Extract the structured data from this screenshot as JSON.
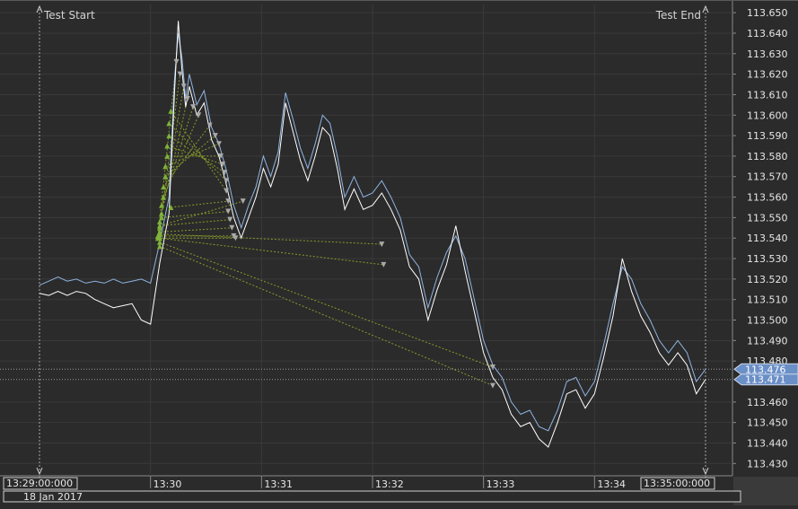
{
  "chart_data": {
    "type": "line",
    "title": "",
    "xlabel": "",
    "ylabel": "",
    "ylim": [
      113.424,
      113.654
    ],
    "x_range": [
      "13:29:00",
      "13:35:00"
    ],
    "y_ticks": [
      "113.650",
      "113.640",
      "113.630",
      "113.620",
      "113.610",
      "113.600",
      "113.590",
      "113.580",
      "113.570",
      "113.560",
      "113.550",
      "113.540",
      "113.530",
      "113.520",
      "113.510",
      "113.500",
      "113.490",
      "113.480",
      "113.460",
      "113.450",
      "113.440",
      "113.430"
    ],
    "y_tick_values": [
      113.65,
      113.64,
      113.63,
      113.62,
      113.61,
      113.6,
      113.59,
      113.58,
      113.57,
      113.56,
      113.55,
      113.54,
      113.53,
      113.52,
      113.51,
      113.5,
      113.49,
      113.48,
      113.46,
      113.45,
      113.44,
      113.43
    ],
    "x_ticks": [
      {
        "label": "13:29:00:000",
        "t": "13:29:00",
        "boxed": true
      },
      {
        "label": "13:30",
        "t": "13:30:00",
        "boxed": false
      },
      {
        "label": "13:31",
        "t": "13:31:00",
        "boxed": false
      },
      {
        "label": "13:32",
        "t": "13:32:00",
        "boxed": false
      },
      {
        "label": "13:33",
        "t": "13:33:00",
        "boxed": false
      },
      {
        "label": "13:34",
        "t": "13:34:00",
        "boxed": false
      },
      {
        "label": "13:35:00:000",
        "t": "13:35:00",
        "boxed": true
      }
    ],
    "date_label": "18 Jan 2017",
    "markers": [
      {
        "label": "Test Start",
        "t": "13:29:00"
      },
      {
        "label": "Test End",
        "t": "13:35:00"
      }
    ],
    "price_tags": [
      {
        "label": "113.476",
        "value": 113.476
      },
      {
        "label": "113.471",
        "value": 113.471
      }
    ],
    "series": [
      {
        "color": "#8fb4e3",
        "points": [
          [
            "13:29:00",
            113.517
          ],
          [
            "13:29:05",
            113.519
          ],
          [
            "13:29:10",
            113.521
          ],
          [
            "13:29:15",
            113.519
          ],
          [
            "13:29:20",
            113.52
          ],
          [
            "13:29:25",
            113.518
          ],
          [
            "13:29:30",
            113.519
          ],
          [
            "13:29:35",
            113.518
          ],
          [
            "13:29:40",
            113.52
          ],
          [
            "13:29:45",
            113.518
          ],
          [
            "13:29:50",
            113.519
          ],
          [
            "13:29:55",
            113.52
          ],
          [
            "13:30:00",
            113.518
          ],
          [
            "13:30:05",
            113.538
          ],
          [
            "13:30:10",
            113.56
          ],
          [
            "13:30:13",
            113.618
          ],
          [
            "13:30:15",
            113.64
          ],
          [
            "13:30:17",
            113.628
          ],
          [
            "13:30:19",
            113.608
          ],
          [
            "13:30:21",
            113.62
          ],
          [
            "13:30:25",
            113.605
          ],
          [
            "13:30:29",
            113.612
          ],
          [
            "13:30:33",
            113.594
          ],
          [
            "13:30:37",
            113.586
          ],
          [
            "13:30:41",
            113.573
          ],
          [
            "13:30:45",
            113.556
          ],
          [
            "13:30:49",
            113.545
          ],
          [
            "13:30:53",
            113.556
          ],
          [
            "13:30:57",
            113.565
          ],
          [
            "13:31:01",
            113.58
          ],
          [
            "13:31:05",
            113.57
          ],
          [
            "13:31:09",
            113.582
          ],
          [
            "13:31:13",
            113.611
          ],
          [
            "13:31:17",
            113.598
          ],
          [
            "13:31:21",
            113.584
          ],
          [
            "13:31:25",
            113.574
          ],
          [
            "13:31:29",
            113.586
          ],
          [
            "13:31:33",
            113.6
          ],
          [
            "13:31:37",
            113.596
          ],
          [
            "13:31:41",
            113.58
          ],
          [
            "13:31:45",
            113.56
          ],
          [
            "13:31:50",
            113.57
          ],
          [
            "13:31:55",
            113.56
          ],
          [
            "13:32:00",
            113.562
          ],
          [
            "13:32:05",
            113.568
          ],
          [
            "13:32:10",
            113.56
          ],
          [
            "13:32:15",
            113.55
          ],
          [
            "13:32:20",
            113.532
          ],
          [
            "13:32:25",
            113.526
          ],
          [
            "13:32:30",
            113.506
          ],
          [
            "13:32:35",
            113.521
          ],
          [
            "13:32:40",
            113.533
          ],
          [
            "13:32:45",
            113.541
          ],
          [
            "13:32:50",
            113.53
          ],
          [
            "13:32:55",
            113.51
          ],
          [
            "13:33:00",
            113.49
          ],
          [
            "13:33:05",
            113.478
          ],
          [
            "13:33:10",
            113.472
          ],
          [
            "13:33:15",
            113.46
          ],
          [
            "13:33:20",
            113.454
          ],
          [
            "13:33:25",
            113.456
          ],
          [
            "13:33:30",
            113.448
          ],
          [
            "13:33:35",
            113.446
          ],
          [
            "13:33:40",
            113.456
          ],
          [
            "13:33:45",
            113.47
          ],
          [
            "13:33:50",
            113.472
          ],
          [
            "13:33:55",
            113.463
          ],
          [
            "13:34:00",
            113.47
          ],
          [
            "13:34:05",
            113.488
          ],
          [
            "13:34:10",
            113.508
          ],
          [
            "13:34:15",
            113.526
          ],
          [
            "13:34:20",
            113.52
          ],
          [
            "13:34:25",
            113.508
          ],
          [
            "13:34:30",
            113.5
          ],
          [
            "13:34:35",
            113.49
          ],
          [
            "13:34:40",
            113.484
          ],
          [
            "13:34:45",
            113.49
          ],
          [
            "13:34:50",
            113.484
          ],
          [
            "13:34:55",
            113.47
          ],
          [
            "13:35:00",
            113.476
          ]
        ]
      },
      {
        "color": "#ffffff",
        "points": [
          [
            "13:29:00",
            113.513
          ],
          [
            "13:29:05",
            113.512
          ],
          [
            "13:29:10",
            113.514
          ],
          [
            "13:29:15",
            113.512
          ],
          [
            "13:29:20",
            113.514
          ],
          [
            "13:29:25",
            113.513
          ],
          [
            "13:29:30",
            113.51
          ],
          [
            "13:29:35",
            113.508
          ],
          [
            "13:29:40",
            113.506
          ],
          [
            "13:29:45",
            113.507
          ],
          [
            "13:29:50",
            113.508
          ],
          [
            "13:29:55",
            113.5
          ],
          [
            "13:30:00",
            113.498
          ],
          [
            "13:30:05",
            113.528
          ],
          [
            "13:30:10",
            113.552
          ],
          [
            "13:30:13",
            113.612
          ],
          [
            "13:30:15",
            113.646
          ],
          [
            "13:30:17",
            113.622
          ],
          [
            "13:30:19",
            113.604
          ],
          [
            "13:30:21",
            113.614
          ],
          [
            "13:30:25",
            113.6
          ],
          [
            "13:30:29",
            113.606
          ],
          [
            "13:30:33",
            113.588
          ],
          [
            "13:30:37",
            113.58
          ],
          [
            "13:30:41",
            113.566
          ],
          [
            "13:30:45",
            113.55
          ],
          [
            "13:30:49",
            113.54
          ],
          [
            "13:30:53",
            113.55
          ],
          [
            "13:30:57",
            113.56
          ],
          [
            "13:31:01",
            113.574
          ],
          [
            "13:31:05",
            113.565
          ],
          [
            "13:31:09",
            113.576
          ],
          [
            "13:31:13",
            113.606
          ],
          [
            "13:31:17",
            113.592
          ],
          [
            "13:31:21",
            113.578
          ],
          [
            "13:31:25",
            113.568
          ],
          [
            "13:31:29",
            113.58
          ],
          [
            "13:31:33",
            113.594
          ],
          [
            "13:31:37",
            113.59
          ],
          [
            "13:31:41",
            113.574
          ],
          [
            "13:31:45",
            113.554
          ],
          [
            "13:31:50",
            113.564
          ],
          [
            "13:31:55",
            113.554
          ],
          [
            "13:32:00",
            113.556
          ],
          [
            "13:32:05",
            113.562
          ],
          [
            "13:32:10",
            113.554
          ],
          [
            "13:32:15",
            113.544
          ],
          [
            "13:32:20",
            113.526
          ],
          [
            "13:32:25",
            113.52
          ],
          [
            "13:32:30",
            113.5
          ],
          [
            "13:32:35",
            113.515
          ],
          [
            "13:32:40",
            113.527
          ],
          [
            "13:32:45",
            113.546
          ],
          [
            "13:32:50",
            113.524
          ],
          [
            "13:32:55",
            113.504
          ],
          [
            "13:33:00",
            113.484
          ],
          [
            "13:33:05",
            113.472
          ],
          [
            "13:33:10",
            113.466
          ],
          [
            "13:33:15",
            113.454
          ],
          [
            "13:33:20",
            113.448
          ],
          [
            "13:33:25",
            113.45
          ],
          [
            "13:33:30",
            113.442
          ],
          [
            "13:33:35",
            113.438
          ],
          [
            "13:33:40",
            113.45
          ],
          [
            "13:33:45",
            113.464
          ],
          [
            "13:33:50",
            113.466
          ],
          [
            "13:33:55",
            113.457
          ],
          [
            "13:34:00",
            113.464
          ],
          [
            "13:34:05",
            113.482
          ],
          [
            "13:34:10",
            113.502
          ],
          [
            "13:34:15",
            113.53
          ],
          [
            "13:34:20",
            113.514
          ],
          [
            "13:34:25",
            113.502
          ],
          [
            "13:34:30",
            113.494
          ],
          [
            "13:34:35",
            113.484
          ],
          [
            "13:34:40",
            113.478
          ],
          [
            "13:34:45",
            113.484
          ],
          [
            "13:34:50",
            113.478
          ],
          [
            "13:34:55",
            113.464
          ],
          [
            "13:35:00",
            113.471
          ]
        ]
      }
    ],
    "trades": [
      {
        "entry": [
          "13:30:04",
          113.541
        ],
        "exit": [
          "13:30:14",
          113.626
        ]
      },
      {
        "entry": [
          "13:30:05",
          113.545
        ],
        "exit": [
          "13:30:16",
          113.62
        ]
      },
      {
        "entry": [
          "13:30:05",
          113.548
        ],
        "exit": [
          "13:30:18",
          113.614
        ]
      },
      {
        "entry": [
          "13:30:06",
          113.552
        ],
        "exit": [
          "13:30:20",
          113.608
        ]
      },
      {
        "entry": [
          "13:30:06",
          113.556
        ],
        "exit": [
          "13:30:23",
          113.604
        ]
      },
      {
        "entry": [
          "13:30:07",
          113.56
        ],
        "exit": [
          "13:30:26",
          113.6
        ]
      },
      {
        "entry": [
          "13:30:07",
          113.565
        ],
        "exit": [
          "13:30:32",
          113.595
        ]
      },
      {
        "entry": [
          "13:30:08",
          113.57
        ],
        "exit": [
          "13:30:35",
          113.59
        ]
      },
      {
        "entry": [
          "13:30:08",
          113.575
        ],
        "exit": [
          "13:30:37",
          113.586
        ]
      },
      {
        "entry": [
          "13:30:09",
          113.58
        ],
        "exit": [
          "13:30:38",
          113.58
        ]
      },
      {
        "entry": [
          "13:30:09",
          113.585
        ],
        "exit": [
          "13:30:39",
          113.576
        ]
      },
      {
        "entry": [
          "13:30:10",
          113.59
        ],
        "exit": [
          "13:30:40",
          113.572
        ]
      },
      {
        "entry": [
          "13:30:10",
          113.596
        ],
        "exit": [
          "13:30:41",
          113.568
        ]
      },
      {
        "entry": [
          "13:30:11",
          113.602
        ],
        "exit": [
          "13:30:41",
          113.563
        ]
      },
      {
        "entry": [
          "13:30:11",
          113.555
        ],
        "exit": [
          "13:30:42",
          113.558
        ]
      },
      {
        "entry": [
          "13:30:06",
          113.55
        ],
        "exit": [
          "13:30:42",
          113.553
        ]
      },
      {
        "entry": [
          "13:30:05",
          113.546
        ],
        "exit": [
          "13:30:43",
          113.549
        ]
      },
      {
        "entry": [
          "13:30:05",
          113.543
        ],
        "exit": [
          "13:30:44",
          113.545
        ]
      },
      {
        "entry": [
          "13:30:04",
          113.541
        ],
        "exit": [
          "13:30:45",
          113.541
        ]
      },
      {
        "entry": [
          "13:30:04",
          113.54
        ],
        "exit": [
          "13:30:46",
          113.54
        ]
      },
      {
        "entry": [
          "13:30:05",
          113.546
        ],
        "exit": [
          "13:30:50",
          113.558
        ]
      },
      {
        "entry": [
          "13:30:05",
          113.542
        ],
        "exit": [
          "13:32:05",
          113.537
        ]
      },
      {
        "entry": [
          "13:30:05",
          113.54
        ],
        "exit": [
          "13:32:06",
          113.527
        ]
      },
      {
        "entry": [
          "13:30:05",
          113.538
        ],
        "exit": [
          "13:33:05",
          113.477
        ]
      },
      {
        "entry": [
          "13:30:05",
          113.536
        ],
        "exit": [
          "13:33:05",
          113.468
        ]
      }
    ]
  }
}
